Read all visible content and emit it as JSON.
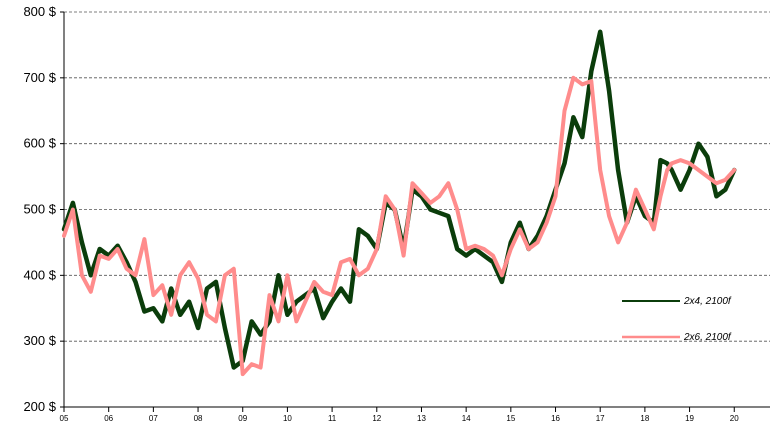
{
  "chart_data": {
    "type": "line",
    "title": "",
    "xlabel": "",
    "ylabel": "",
    "ylim": [
      200,
      800
    ],
    "y_ticks": [
      200,
      300,
      400,
      500,
      600,
      700,
      800
    ],
    "y_tick_labels": [
      "200 $",
      "300 $",
      "400 $",
      "500 $",
      "600 $",
      "700 $",
      "800 $"
    ],
    "xlim": [
      2005,
      2020.8
    ],
    "x_ticks": [
      2005,
      2006,
      2007,
      2008,
      2009,
      2010,
      2011,
      2012,
      2013,
      2014,
      2015,
      2016,
      2017,
      2018,
      2019,
      2020
    ],
    "x_tick_labels": [
      "05",
      "06",
      "07",
      "08",
      "09",
      "10",
      "11",
      "12",
      "13",
      "14",
      "15",
      "16",
      "17",
      "18",
      "19",
      "20"
    ],
    "grid": "horizontal dashed",
    "legend_position": "right",
    "series": [
      {
        "name": "2x4, 2100f",
        "color": "#0b3d0b",
        "x": [
          2005.0,
          2005.2,
          2005.4,
          2005.6,
          2005.8,
          2006.0,
          2006.2,
          2006.4,
          2006.6,
          2006.8,
          2007.0,
          2007.2,
          2007.4,
          2007.6,
          2007.8,
          2008.0,
          2008.2,
          2008.4,
          2008.6,
          2008.8,
          2009.0,
          2009.2,
          2009.4,
          2009.6,
          2009.8,
          2010.0,
          2010.2,
          2010.4,
          2010.6,
          2010.8,
          2011.0,
          2011.2,
          2011.4,
          2011.6,
          2011.8,
          2012.0,
          2012.2,
          2012.4,
          2012.6,
          2012.8,
          2013.0,
          2013.2,
          2013.4,
          2013.6,
          2013.8,
          2014.0,
          2014.2,
          2014.4,
          2014.6,
          2014.8,
          2015.0,
          2015.2,
          2015.4,
          2015.6,
          2015.8,
          2016.0,
          2016.2,
          2016.4,
          2016.6,
          2016.8,
          2017.0,
          2017.2,
          2017.4,
          2017.6,
          2017.8,
          2018.0,
          2018.2,
          2018.35,
          2018.5,
          2018.6,
          2018.8,
          2019.0,
          2019.2,
          2019.4,
          2019.6,
          2019.8,
          2020.0
        ],
        "values": [
          470,
          510,
          450,
          400,
          440,
          430,
          445,
          420,
          390,
          345,
          350,
          330,
          380,
          340,
          360,
          320,
          380,
          390,
          320,
          260,
          270,
          330,
          310,
          330,
          400,
          340,
          360,
          370,
          380,
          335,
          360,
          380,
          360,
          470,
          460,
          440,
          510,
          500,
          440,
          530,
          520,
          500,
          495,
          490,
          440,
          430,
          440,
          430,
          420,
          390,
          450,
          480,
          440,
          460,
          490,
          530,
          570,
          640,
          610,
          710,
          770,
          680,
          560,
          480,
          520,
          490,
          480,
          575,
          570,
          560,
          530,
          560,
          600,
          580,
          520,
          530,
          560
        ]
      },
      {
        "name": "2x6, 2100f",
        "color": "#ff8c8c",
        "x": [
          2005.0,
          2005.2,
          2005.4,
          2005.6,
          2005.8,
          2006.0,
          2006.2,
          2006.4,
          2006.6,
          2006.8,
          2007.0,
          2007.2,
          2007.4,
          2007.6,
          2007.8,
          2008.0,
          2008.2,
          2008.4,
          2008.6,
          2008.8,
          2009.0,
          2009.2,
          2009.4,
          2009.6,
          2009.8,
          2010.0,
          2010.2,
          2010.4,
          2010.6,
          2010.8,
          2011.0,
          2011.2,
          2011.4,
          2011.6,
          2011.8,
          2012.0,
          2012.2,
          2012.4,
          2012.6,
          2012.8,
          2013.0,
          2013.2,
          2013.4,
          2013.6,
          2013.8,
          2014.0,
          2014.2,
          2014.4,
          2014.6,
          2014.8,
          2015.0,
          2015.2,
          2015.4,
          2015.6,
          2015.8,
          2016.0,
          2016.2,
          2016.4,
          2016.6,
          2016.8,
          2017.0,
          2017.2,
          2017.4,
          2017.6,
          2017.8,
          2018.0,
          2018.2,
          2018.35,
          2018.5,
          2018.6,
          2018.8,
          2019.0,
          2019.2,
          2019.4,
          2019.6,
          2019.8,
          2020.0
        ],
        "values": [
          460,
          500,
          400,
          375,
          430,
          425,
          440,
          410,
          400,
          455,
          370,
          385,
          340,
          400,
          420,
          395,
          340,
          330,
          400,
          410,
          250,
          265,
          260,
          370,
          330,
          400,
          330,
          360,
          390,
          375,
          370,
          420,
          425,
          400,
          410,
          440,
          520,
          500,
          430,
          540,
          525,
          510,
          520,
          540,
          500,
          440,
          445,
          440,
          430,
          400,
          440,
          470,
          440,
          450,
          480,
          520,
          650,
          700,
          690,
          695,
          560,
          490,
          450,
          480,
          530,
          500,
          470,
          520,
          560,
          570,
          575,
          570,
          560,
          550,
          540,
          545,
          560
        ]
      }
    ]
  }
}
